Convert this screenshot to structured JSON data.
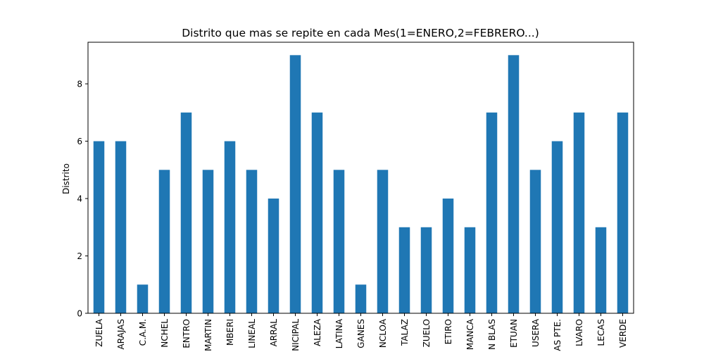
{
  "chart_data": {
    "type": "bar",
    "title": "Distrito que mas se repite en cada Mes(1=ENERO,2=FEBRERO...)",
    "xlabel": "",
    "ylabel": "Distrito",
    "ylim": [
      0,
      9.45
    ],
    "yticks": [
      0,
      2,
      4,
      6,
      8
    ],
    "color": "#1f77b4",
    "categories": [
      "ZUELA",
      "ARAJAS",
      "C.A.M.",
      "NCHEL",
      "ENTRO",
      "MARTIN",
      "MBERI",
      "LINEAL",
      "ARRAL",
      "NICIPAL",
      "ALEZA",
      "LATINA",
      "GANES",
      "NCLOA",
      "TALAZ",
      "ZUELO",
      "ETIRO",
      "MANCA",
      "N BLAS",
      "ETUAN",
      "USERA",
      "AS PTE.",
      "LVARO",
      "LECAS",
      "VERDE"
    ],
    "values": [
      6,
      6,
      1,
      5,
      7,
      5,
      6,
      5,
      4,
      9,
      7,
      5,
      1,
      5,
      3,
      3,
      4,
      3,
      7,
      9,
      5,
      6,
      7,
      3,
      7
    ]
  }
}
